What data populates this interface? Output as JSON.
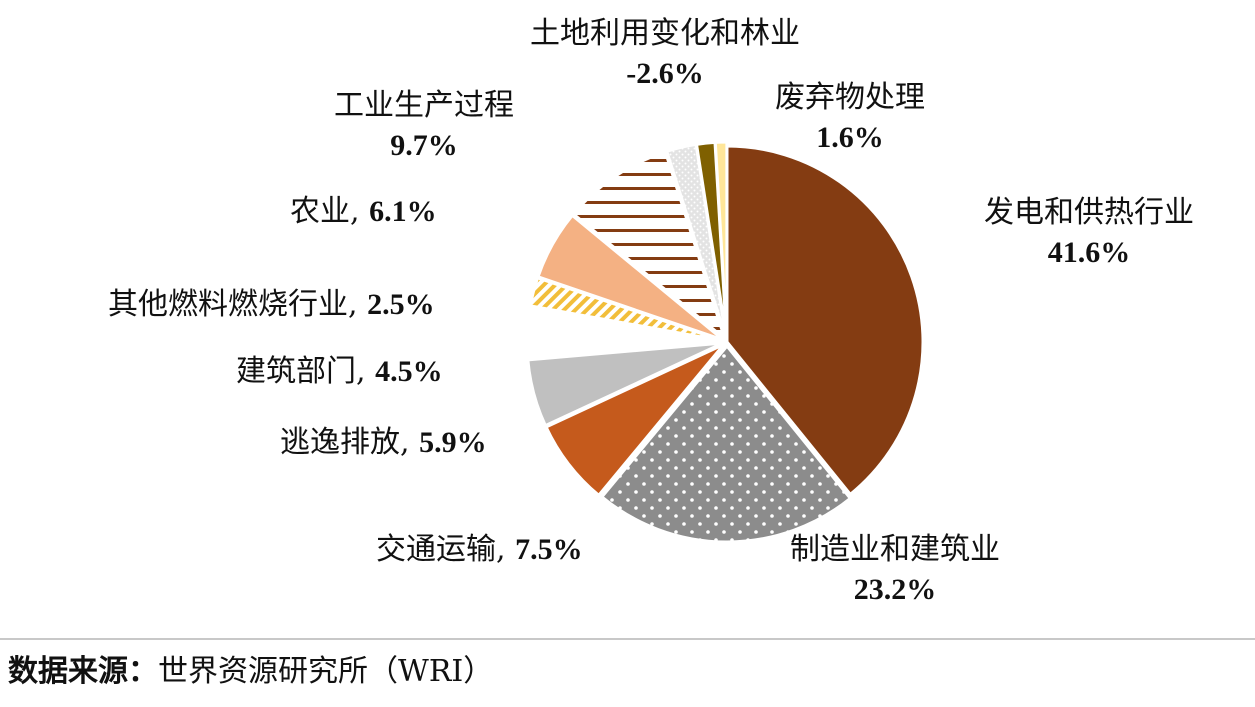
{
  "chart_data": {
    "type": "pie",
    "title": "",
    "slices": [
      {
        "label": "发电和供热行业",
        "value": 41.6,
        "value_text": "41.6%",
        "color": "#843C12",
        "pattern": "solid"
      },
      {
        "label": "制造业和建筑业",
        "value": 23.2,
        "value_text": "23.2%",
        "color": "#8C8C8C",
        "pattern": "dots-white"
      },
      {
        "label": "交通运输",
        "value": 7.5,
        "value_text": "7.5%",
        "color": "#C55A1C",
        "pattern": "solid"
      },
      {
        "label": "逃逸排放",
        "value": 5.9,
        "value_text": "5.9%",
        "color": "#C0C0C0",
        "pattern": "solid"
      },
      {
        "label": "建筑部门",
        "value": 4.5,
        "value_text": "4.5%",
        "color": "#FFFFFF",
        "pattern": "solid"
      },
      {
        "label": "其他燃料燃烧行业",
        "value": 2.5,
        "value_text": "2.5%",
        "color": "#F2BE78",
        "pattern": "diagonal-stripes"
      },
      {
        "label": "农业",
        "value": 6.1,
        "value_text": "6.1%",
        "color": "#F4B183",
        "pattern": "solid"
      },
      {
        "label": "工业生产过程",
        "value": 9.7,
        "value_text": "9.7%",
        "color": "#843C12",
        "pattern": "horizontal-stripes"
      },
      {
        "label": "土地利用变化和林业",
        "value": -2.6,
        "value_text": "-2.6%",
        "color": "#D9D9D9",
        "pattern": "dots-light"
      },
      {
        "label": "废弃物处理",
        "value": 1.6,
        "value_text": "1.6%",
        "color": "#7F6000",
        "pattern": "solid"
      },
      {
        "label": "",
        "value": 1.0,
        "value_text": "",
        "color": "#FFE699",
        "pattern": "solid"
      }
    ],
    "legend": "none",
    "data_labels": "outside"
  },
  "source": {
    "head": "数据来源：",
    "text": "世界资源研究所（WRI）"
  }
}
